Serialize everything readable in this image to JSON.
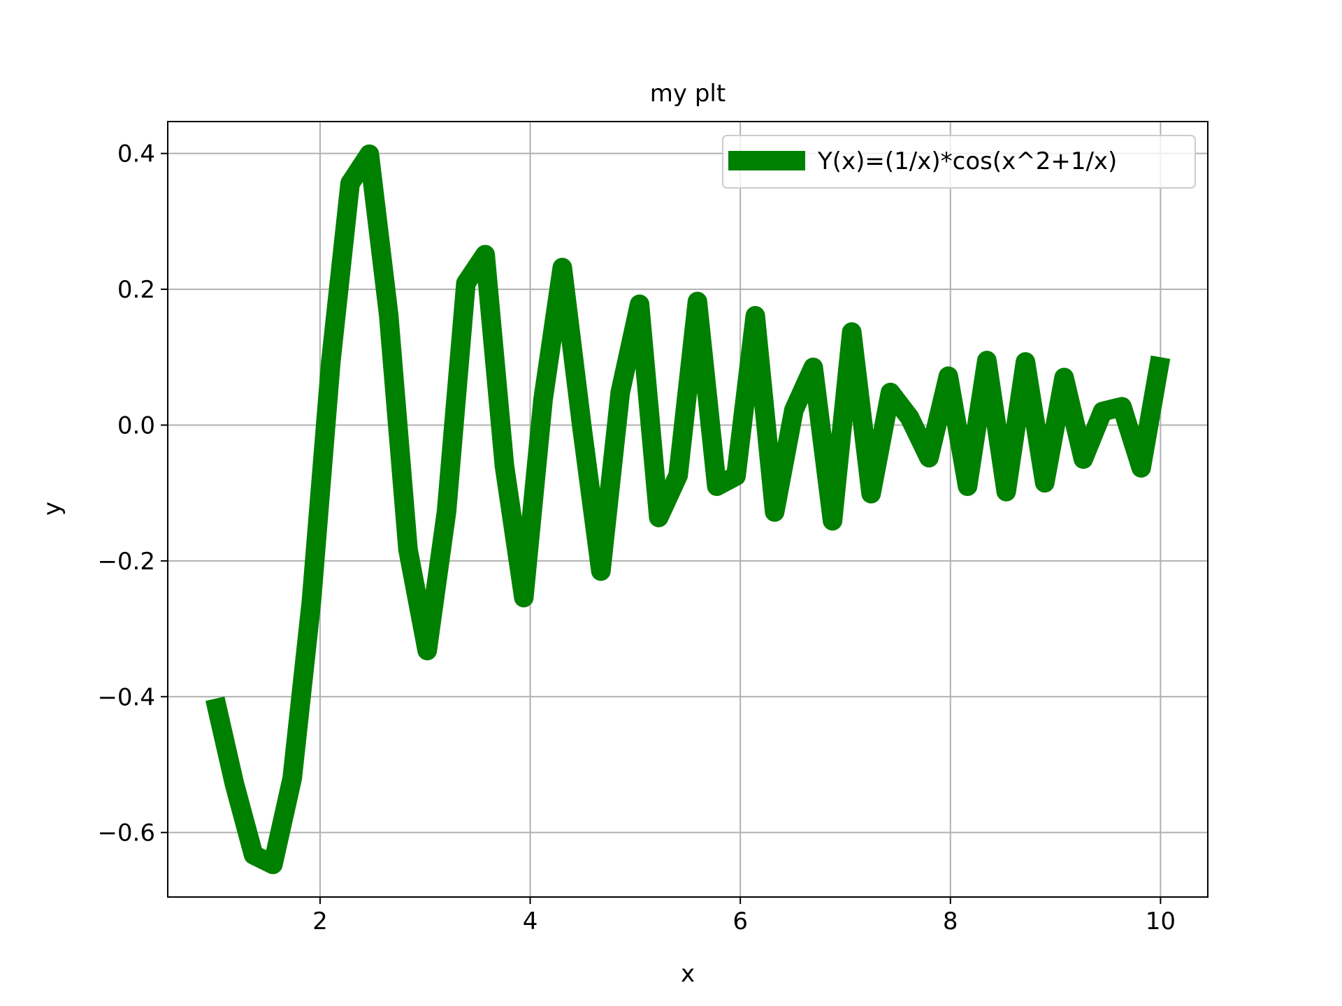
{
  "chart_data": {
    "type": "line",
    "title": "my plt",
    "xlabel": "x",
    "ylabel": "y",
    "xlim": [
      0.55,
      10.45
    ],
    "ylim": [
      -0.695,
      0.447
    ],
    "xticks": [
      2,
      4,
      6,
      8,
      10
    ],
    "xtick_labels": [
      "2",
      "4",
      "6",
      "8",
      "10"
    ],
    "yticks": [
      -0.6,
      -0.4,
      -0.2,
      0.0,
      0.2,
      0.4
    ],
    "ytick_labels": [
      "−0.6",
      "−0.4",
      "−0.2",
      "0.0",
      "0.2",
      "0.4"
    ],
    "grid": true,
    "legend": {
      "location": "upper right"
    },
    "series": [
      {
        "name": "Y(x)=(1/x)*cos(x^2+1/x)",
        "color": "#008000",
        "x": [
          1.0,
          1.184,
          1.367,
          1.551,
          1.735,
          1.918,
          2.102,
          2.286,
          2.469,
          2.653,
          2.837,
          3.02,
          3.204,
          3.388,
          3.571,
          3.755,
          3.939,
          4.122,
          4.306,
          4.49,
          4.673,
          4.857,
          5.041,
          5.224,
          5.408,
          5.592,
          5.776,
          5.959,
          6.143,
          6.327,
          6.51,
          6.694,
          6.878,
          7.061,
          7.245,
          7.429,
          7.612,
          7.796,
          7.98,
          8.163,
          8.347,
          8.531,
          8.714,
          8.898,
          9.082,
          9.265,
          9.449,
          9.633,
          9.816,
          10.0
        ],
        "y": [
          -0.403,
          -0.528,
          -0.633,
          -0.647,
          -0.52,
          -0.259,
          0.093,
          0.356,
          0.399,
          0.162,
          -0.183,
          -0.332,
          -0.127,
          0.209,
          0.251,
          -0.06,
          -0.254,
          0.037,
          0.232,
          0.0,
          -0.215,
          0.048,
          0.178,
          -0.136,
          -0.074,
          0.182,
          -0.09,
          -0.075,
          0.161,
          -0.128,
          0.022,
          0.085,
          -0.141,
          0.137,
          -0.101,
          0.048,
          0.011,
          -0.048,
          0.072,
          -0.09,
          0.095,
          -0.098,
          0.093,
          -0.085,
          0.07,
          -0.05,
          0.02,
          0.027,
          -0.063,
          0.1
        ]
      }
    ]
  }
}
